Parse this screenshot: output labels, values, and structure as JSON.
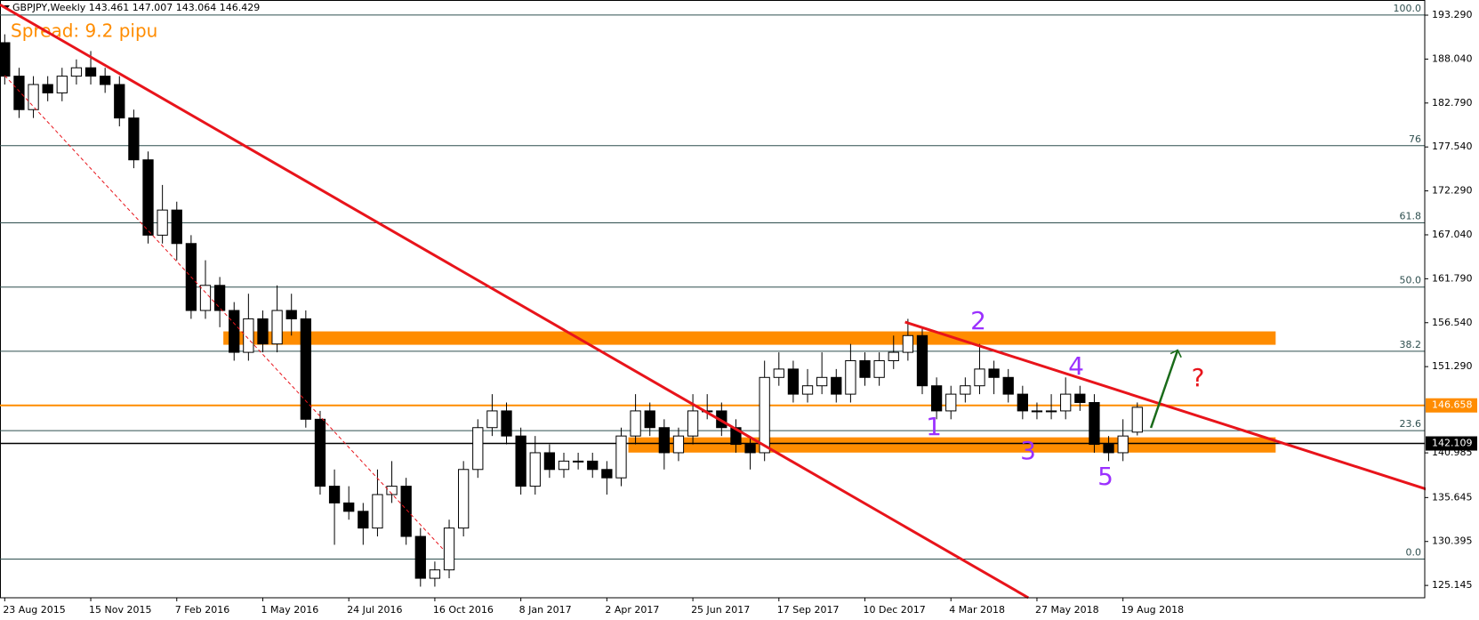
{
  "chart_data": {
    "type": "candlestick",
    "title": "GBPJPY,Weekly  143.461 147.007 143.064 146.429",
    "subtitle": "Spread: 9.2 pipu",
    "xlim": [
      -0.66,
      198.1
    ],
    "ylim": [
      123.67,
      195.1
    ],
    "xticks": [
      {
        "value": 0,
        "label": "23 Aug 2015"
      },
      {
        "value": 12,
        "label": "15 Nov 2015"
      },
      {
        "value": 24,
        "label": "7 Feb 2016"
      },
      {
        "value": 36,
        "label": "1 May 2016"
      },
      {
        "value": 48,
        "label": "24 Jul 2016"
      },
      {
        "value": 60,
        "label": "16 Oct 2016"
      },
      {
        "value": 72,
        "label": "8 Jan 2017"
      },
      {
        "value": 84,
        "label": "2 Apr 2017"
      },
      {
        "value": 96,
        "label": "25 Jun 2017"
      },
      {
        "value": 108,
        "label": "17 Sep 2017"
      },
      {
        "value": 120,
        "label": "10 Dec 2017"
      },
      {
        "value": 132,
        "label": "4 Mar 2018"
      },
      {
        "value": 144,
        "label": "27 May 2018"
      },
      {
        "value": 156,
        "label": "19 Aug 2018"
      }
    ],
    "yticks": [
      {
        "value": 193.29,
        "label": "193.290"
      },
      {
        "value": 188.04,
        "label": "188.040"
      },
      {
        "value": 182.79,
        "label": "182.790"
      },
      {
        "value": 177.54,
        "label": "177.540"
      },
      {
        "value": 172.29,
        "label": "172.290"
      },
      {
        "value": 167.04,
        "label": "167.040"
      },
      {
        "value": 161.79,
        "label": "161.790"
      },
      {
        "value": 156.54,
        "label": "156.540"
      },
      {
        "value": 151.29,
        "label": "151.290"
      },
      {
        "value": 140.985,
        "label": "140.985"
      },
      {
        "value": 135.645,
        "label": "135.645"
      },
      {
        "value": 130.395,
        "label": "130.395"
      },
      {
        "value": 125.145,
        "label": "125.145"
      }
    ],
    "grid": false,
    "up_color": "#ffffff",
    "down_color": "#000000",
    "x": [
      0,
      2,
      4,
      6,
      8,
      10,
      12,
      14,
      16,
      18,
      20,
      22,
      24,
      26,
      28,
      30,
      32,
      34,
      36,
      38,
      40,
      42,
      44,
      46,
      48,
      50,
      52,
      54,
      56,
      58,
      60,
      62,
      64,
      66,
      68,
      70,
      72,
      74,
      76,
      78,
      80,
      82,
      84,
      86,
      88,
      90,
      92,
      94,
      96,
      98,
      100,
      102,
      104,
      106,
      108,
      110,
      112,
      114,
      116,
      118,
      120,
      122,
      124,
      126,
      128,
      130,
      132,
      134,
      136,
      138,
      140,
      142,
      144,
      146,
      148,
      150,
      152,
      154,
      156,
      158
    ],
    "open": [
      190,
      186,
      182,
      185,
      184,
      186,
      187,
      186,
      185,
      181,
      176,
      167,
      170,
      166,
      158,
      161,
      158,
      153,
      157,
      154,
      158,
      157,
      145,
      137,
      135,
      134,
      132,
      136,
      137,
      131,
      126,
      127,
      132,
      139,
      144,
      146,
      143,
      137,
      141,
      139,
      140,
      140,
      139,
      138,
      143,
      146,
      144,
      141,
      143,
      146,
      146,
      144,
      142,
      141,
      150,
      151,
      148,
      149,
      150,
      148,
      152,
      150,
      152,
      153,
      155,
      149,
      146,
      148,
      149,
      151,
      150,
      148,
      146,
      146,
      146,
      148,
      147,
      142,
      141,
      143.461
    ],
    "high": [
      191,
      187,
      186,
      186,
      187,
      188,
      189,
      187,
      186,
      182,
      177,
      173,
      171,
      167,
      164,
      162,
      159,
      160,
      158,
      161,
      160,
      158,
      146,
      139,
      137,
      135,
      139,
      140,
      138,
      132,
      128,
      133,
      140,
      145,
      148,
      147,
      144,
      143,
      142,
      141,
      141,
      141,
      140,
      144,
      148,
      147,
      145,
      144,
      148,
      148,
      147,
      145,
      143,
      152,
      153,
      152,
      151,
      153,
      151,
      154,
      153,
      153,
      155,
      157,
      156,
      150,
      149,
      150,
      154,
      152,
      151,
      149,
      147,
      148,
      150,
      149,
      148,
      143,
      145,
      147.007
    ],
    "low": [
      185,
      181,
      181,
      183,
      183,
      185,
      185,
      184,
      180,
      175,
      166,
      166,
      164,
      157,
      157,
      156,
      152,
      152,
      153,
      153,
      155,
      144,
      136,
      130,
      133,
      130,
      131,
      135,
      130,
      125,
      125,
      126,
      131,
      138,
      143,
      142,
      136,
      136,
      138,
      138,
      139,
      138,
      136,
      137,
      142,
      143,
      139,
      140,
      142,
      145,
      143,
      141,
      139,
      140,
      149,
      147,
      147,
      148,
      147,
      147,
      149,
      149,
      151,
      152,
      148,
      145,
      145,
      147,
      148,
      148,
      147,
      145,
      145,
      145,
      145,
      146,
      141,
      140,
      140,
      143.064
    ],
    "close": [
      186,
      182,
      185,
      184,
      186,
      187,
      186,
      185,
      181,
      176,
      167,
      170,
      166,
      158,
      161,
      158,
      153,
      157,
      154,
      158,
      157,
      145,
      137,
      135,
      134,
      132,
      136,
      137,
      131,
      126,
      127,
      132,
      139,
      144,
      146,
      143,
      137,
      141,
      139,
      140,
      140,
      139,
      138,
      143,
      146,
      144,
      141,
      143,
      146,
      146,
      144,
      142,
      141,
      150,
      151,
      148,
      149,
      150,
      148,
      152,
      150,
      152,
      153,
      155,
      149,
      146,
      148,
      149,
      151,
      150,
      148,
      146,
      146,
      146,
      148,
      147,
      142,
      141,
      143,
      146.429
    ],
    "fib_levels": [
      {
        "value": 193.3,
        "label": "100.0"
      },
      {
        "value": 177.69,
        "label": "76"
      },
      {
        "value": 168.47,
        "label": "61.8"
      },
      {
        "value": 160.8,
        "label": "50.0"
      },
      {
        "value": 153.13,
        "label": "38.2"
      },
      {
        "value": 143.64,
        "label": "23.6"
      },
      {
        "value": 128.3,
        "label": "0.0"
      }
    ],
    "fib_color": "#2f4f4f",
    "price_lines": [
      {
        "value": 146.658,
        "label": "146.658",
        "color": "#ff8c00"
      },
      {
        "value": 142.109,
        "label": "142.109",
        "color": "#000000"
      }
    ],
    "zones": [
      {
        "x": [
          30.5,
          177.3
        ],
        "range": [
          153.9,
          155.5
        ],
        "color": "#ff8c00"
      },
      {
        "x": [
          87,
          177.3
        ],
        "range": [
          141.02,
          142.84
        ],
        "color": "#ff8c00"
      }
    ],
    "trendlines": [
      {
        "x": [
          -0.66,
          142.8
        ],
        "y": [
          194.54,
          123.67
        ],
        "color": "#e8141b"
      },
      {
        "x": [
          125.6,
          205.7
        ],
        "y": [
          156.62,
          134.62
        ],
        "color": "#e8141b"
      },
      {
        "x": [
          0,
          61.1
        ],
        "y": [
          186.07,
          129.52
        ],
        "color": "#e8141b",
        "dashed": true
      },
      {
        "x": [
          159.9,
          163.6
        ],
        "y": [
          143.97,
          153.18
        ],
        "color": "#1a6b1a",
        "arrow": true
      }
    ],
    "annotations": [
      "1",
      "2",
      "3",
      "4",
      "5",
      "?"
    ]
  }
}
